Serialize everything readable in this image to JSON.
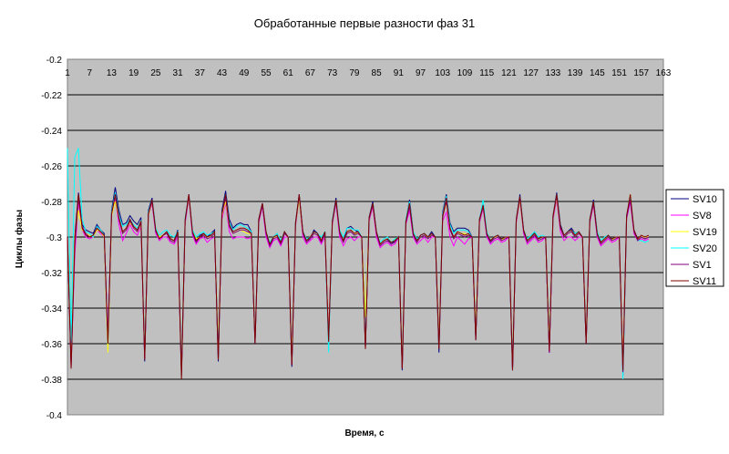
{
  "chart_data": {
    "type": "line",
    "title": "Обработанные первые разности фаз 31",
    "xlabel": "Время, с",
    "ylabel": "Циклы фазы",
    "ylim": [
      -0.4,
      -0.2
    ],
    "yticks": [
      -0.2,
      -0.22,
      -0.24,
      -0.26,
      -0.28,
      -0.3,
      -0.32,
      -0.34,
      -0.36,
      -0.38,
      -0.4
    ],
    "ytick_labels": [
      "-0.2",
      "-0.22",
      "-0.24",
      "-0.26",
      "-0.28",
      "-0.3",
      "-0.32",
      "-0.34",
      "-0.36",
      "-0.38",
      "-0.4"
    ],
    "x_range": [
      1,
      163
    ],
    "xtick_labels": [
      "1",
      "7",
      "13",
      "19",
      "25",
      "31",
      "37",
      "43",
      "49",
      "55",
      "61",
      "67",
      "73",
      "79",
      "85",
      "91",
      "97",
      "103",
      "109",
      "115",
      "121",
      "127",
      "133",
      "139",
      "145",
      "151",
      "157",
      "163"
    ],
    "grid": "horizontal",
    "legend_position": "right",
    "background": "#c0c0c0",
    "series": [
      {
        "name": "SV10",
        "color": "#000080",
        "values": [
          -0.3,
          -0.37,
          -0.3,
          -0.275,
          -0.293,
          -0.296,
          -0.297,
          -0.298,
          -0.293,
          -0.296,
          -0.298,
          -0.36,
          -0.285,
          -0.272,
          -0.285,
          -0.293,
          -0.292,
          -0.288,
          -0.291,
          -0.293,
          -0.289,
          -0.37,
          -0.285,
          -0.278,
          -0.296,
          -0.3,
          -0.299,
          -0.297,
          -0.301,
          -0.302,
          -0.296,
          -0.378,
          -0.29,
          -0.276,
          -0.297,
          -0.302,
          -0.299,
          -0.298,
          -0.3,
          -0.298,
          -0.296,
          -0.37,
          -0.285,
          -0.274,
          -0.29,
          -0.295,
          -0.293,
          -0.292,
          -0.293,
          -0.293,
          -0.297,
          -0.36,
          -0.29,
          -0.281,
          -0.297,
          -0.305,
          -0.3,
          -0.298,
          -0.303,
          -0.297,
          -0.3,
          -0.373,
          -0.292,
          -0.276,
          -0.297,
          -0.302,
          -0.301,
          -0.296,
          -0.298,
          -0.302,
          -0.297,
          -0.36,
          -0.291,
          -0.278,
          -0.297,
          -0.302,
          -0.295,
          -0.294,
          -0.296,
          -0.297,
          -0.3,
          -0.362,
          -0.289,
          -0.28,
          -0.297,
          -0.304,
          -0.302,
          -0.301,
          -0.304,
          -0.302,
          -0.3,
          -0.375,
          -0.291,
          -0.279,
          -0.297,
          -0.302,
          -0.299,
          -0.298,
          -0.3,
          -0.297,
          -0.3,
          -0.365,
          -0.286,
          -0.276,
          -0.292,
          -0.297,
          -0.295,
          -0.295,
          -0.295,
          -0.296,
          -0.3,
          -0.358,
          -0.29,
          -0.282,
          -0.298,
          -0.303,
          -0.3,
          -0.299,
          -0.302,
          -0.3,
          -0.3,
          -0.375,
          -0.29,
          -0.276,
          -0.296,
          -0.302,
          -0.3,
          -0.297,
          -0.301,
          -0.3,
          -0.3,
          -0.365,
          -0.288,
          -0.275,
          -0.293,
          -0.299,
          -0.297,
          -0.295,
          -0.298,
          -0.297,
          -0.3,
          -0.36,
          -0.29,
          -0.279,
          -0.297,
          -0.303,
          -0.301,
          -0.299,
          -0.302,
          -0.3,
          -0.3,
          -0.378,
          -0.288,
          -0.278,
          -0.296,
          -0.301,
          -0.3,
          -0.301,
          -0.3
        ]
      },
      {
        "name": "SV8",
        "color": "#ff00ff",
        "values": [
          -0.3,
          -0.372,
          -0.31,
          -0.28,
          -0.296,
          -0.3,
          -0.301,
          -0.3,
          -0.296,
          -0.298,
          -0.3,
          -0.355,
          -0.288,
          -0.279,
          -0.293,
          -0.302,
          -0.298,
          -0.293,
          -0.297,
          -0.299,
          -0.294,
          -0.368,
          -0.288,
          -0.281,
          -0.298,
          -0.302,
          -0.3,
          -0.3,
          -0.303,
          -0.304,
          -0.3,
          -0.375,
          -0.292,
          -0.278,
          -0.299,
          -0.304,
          -0.301,
          -0.3,
          -0.303,
          -0.301,
          -0.3,
          -0.365,
          -0.29,
          -0.281,
          -0.297,
          -0.301,
          -0.3,
          -0.3,
          -0.3,
          -0.301,
          -0.3,
          -0.358,
          -0.292,
          -0.283,
          -0.3,
          -0.306,
          -0.302,
          -0.301,
          -0.305,
          -0.3,
          -0.3,
          -0.37,
          -0.294,
          -0.278,
          -0.3,
          -0.304,
          -0.302,
          -0.3,
          -0.3,
          -0.304,
          -0.3,
          -0.355,
          -0.293,
          -0.281,
          -0.3,
          -0.305,
          -0.301,
          -0.3,
          -0.302,
          -0.3,
          -0.3,
          -0.36,
          -0.291,
          -0.283,
          -0.3,
          -0.306,
          -0.304,
          -0.303,
          -0.305,
          -0.304,
          -0.3,
          -0.372,
          -0.293,
          -0.285,
          -0.3,
          -0.304,
          -0.302,
          -0.3,
          -0.303,
          -0.3,
          -0.3,
          -0.36,
          -0.291,
          -0.286,
          -0.3,
          -0.305,
          -0.3,
          -0.302,
          -0.304,
          -0.301,
          -0.3,
          -0.356,
          -0.292,
          -0.284,
          -0.3,
          -0.304,
          -0.302,
          -0.301,
          -0.303,
          -0.302,
          -0.3,
          -0.372,
          -0.292,
          -0.279,
          -0.298,
          -0.304,
          -0.302,
          -0.3,
          -0.303,
          -0.302,
          -0.3,
          -0.365,
          -0.29,
          -0.279,
          -0.297,
          -0.302,
          -0.3,
          -0.3,
          -0.302,
          -0.3,
          -0.3,
          -0.358,
          -0.292,
          -0.282,
          -0.3,
          -0.305,
          -0.303,
          -0.301,
          -0.303,
          -0.302,
          -0.3,
          -0.374,
          -0.29,
          -0.28,
          -0.298,
          -0.302,
          -0.301,
          -0.302,
          -0.301
        ]
      },
      {
        "name": "SV19",
        "color": "#ffff00",
        "values": [
          -0.3,
          -0.365,
          -0.3,
          -0.285,
          -0.296,
          -0.298,
          -0.299,
          -0.3,
          -0.296,
          -0.297,
          -0.3,
          -0.365,
          -0.288,
          -0.28,
          -0.29,
          -0.298,
          -0.296,
          -0.292,
          -0.295,
          -0.297,
          -0.293,
          -0.365,
          -0.288,
          -0.28,
          -0.296,
          -0.3,
          -0.299,
          -0.298,
          -0.301,
          -0.302,
          -0.298,
          -0.372,
          -0.29,
          -0.278,
          -0.297,
          -0.301,
          -0.3,
          -0.299,
          -0.3,
          -0.3,
          -0.298,
          -0.362,
          -0.288,
          -0.28,
          -0.294,
          -0.298,
          -0.297,
          -0.296,
          -0.297,
          -0.298,
          -0.298,
          -0.358,
          -0.291,
          -0.282,
          -0.297,
          -0.303,
          -0.3,
          -0.3,
          -0.302,
          -0.298,
          -0.3,
          -0.368,
          -0.293,
          -0.279,
          -0.298,
          -0.302,
          -0.3,
          -0.298,
          -0.299,
          -0.302,
          -0.298,
          -0.356,
          -0.292,
          -0.28,
          -0.297,
          -0.302,
          -0.297,
          -0.296,
          -0.298,
          -0.298,
          -0.3,
          -0.345,
          -0.29,
          -0.282,
          -0.298,
          -0.304,
          -0.302,
          -0.301,
          -0.303,
          -0.301,
          -0.3,
          -0.37,
          -0.292,
          -0.282,
          -0.298,
          -0.302,
          -0.3,
          -0.299,
          -0.3,
          -0.299,
          -0.3,
          -0.358,
          -0.289,
          -0.281,
          -0.296,
          -0.3,
          -0.298,
          -0.298,
          -0.298,
          -0.299,
          -0.3,
          -0.352,
          -0.291,
          -0.283,
          -0.298,
          -0.302,
          -0.3,
          -0.3,
          -0.302,
          -0.3,
          -0.3,
          -0.37,
          -0.291,
          -0.279,
          -0.297,
          -0.302,
          -0.3,
          -0.298,
          -0.301,
          -0.3,
          -0.3,
          -0.36,
          -0.289,
          -0.278,
          -0.295,
          -0.3,
          -0.298,
          -0.297,
          -0.299,
          -0.298,
          -0.3,
          -0.356,
          -0.291,
          -0.281,
          -0.298,
          -0.303,
          -0.301,
          -0.3,
          -0.302,
          -0.3,
          -0.3,
          -0.372,
          -0.289,
          -0.276,
          -0.297,
          -0.301,
          -0.3,
          -0.3,
          -0.3
        ]
      },
      {
        "name": "SV20",
        "color": "#00ffff",
        "values": [
          -0.25,
          -0.36,
          -0.255,
          -0.25,
          -0.29,
          -0.297,
          -0.298,
          -0.3,
          -0.294,
          -0.296,
          -0.299,
          -0.36,
          -0.286,
          -0.275,
          -0.288,
          -0.294,
          -0.293,
          -0.29,
          -0.293,
          -0.295,
          -0.291,
          -0.366,
          -0.286,
          -0.279,
          -0.295,
          -0.299,
          -0.297,
          -0.296,
          -0.299,
          -0.3,
          -0.297,
          -0.374,
          -0.289,
          -0.277,
          -0.296,
          -0.3,
          -0.298,
          -0.297,
          -0.299,
          -0.298,
          -0.297,
          -0.366,
          -0.287,
          -0.276,
          -0.292,
          -0.296,
          -0.294,
          -0.293,
          -0.294,
          -0.295,
          -0.297,
          -0.359,
          -0.29,
          -0.282,
          -0.297,
          -0.303,
          -0.3,
          -0.298,
          -0.302,
          -0.297,
          -0.3,
          -0.37,
          -0.292,
          -0.277,
          -0.297,
          -0.301,
          -0.3,
          -0.297,
          -0.298,
          -0.3,
          -0.297,
          -0.365,
          -0.29,
          -0.279,
          -0.296,
          -0.3,
          -0.295,
          -0.295,
          -0.296,
          -0.296,
          -0.3,
          -0.358,
          -0.289,
          -0.281,
          -0.297,
          -0.303,
          -0.301,
          -0.3,
          -0.303,
          -0.301,
          -0.3,
          -0.372,
          -0.29,
          -0.28,
          -0.297,
          -0.301,
          -0.299,
          -0.298,
          -0.3,
          -0.298,
          -0.3,
          -0.362,
          -0.287,
          -0.277,
          -0.293,
          -0.298,
          -0.296,
          -0.296,
          -0.296,
          -0.297,
          -0.3,
          -0.356,
          -0.29,
          -0.279,
          -0.297,
          -0.302,
          -0.3,
          -0.299,
          -0.301,
          -0.3,
          -0.3,
          -0.372,
          -0.29,
          -0.277,
          -0.296,
          -0.301,
          -0.299,
          -0.297,
          -0.3,
          -0.299,
          -0.3,
          -0.362,
          -0.288,
          -0.276,
          -0.294,
          -0.299,
          -0.297,
          -0.296,
          -0.298,
          -0.297,
          -0.3,
          -0.358,
          -0.29,
          -0.28,
          -0.297,
          -0.302,
          -0.3,
          -0.299,
          -0.301,
          -0.3,
          -0.3,
          -0.38,
          -0.288,
          -0.277,
          -0.296,
          -0.302,
          -0.302,
          -0.303,
          -0.302
        ]
      },
      {
        "name": "SV1",
        "color": "#800080",
        "values": [
          -0.3,
          -0.373,
          -0.305,
          -0.278,
          -0.294,
          -0.298,
          -0.3,
          -0.299,
          -0.295,
          -0.297,
          -0.299,
          -0.358,
          -0.287,
          -0.277,
          -0.29,
          -0.298,
          -0.296,
          -0.291,
          -0.295,
          -0.297,
          -0.292,
          -0.368,
          -0.287,
          -0.28,
          -0.297,
          -0.301,
          -0.299,
          -0.298,
          -0.302,
          -0.303,
          -0.298,
          -0.376,
          -0.291,
          -0.277,
          -0.298,
          -0.303,
          -0.3,
          -0.299,
          -0.301,
          -0.3,
          -0.298,
          -0.368,
          -0.287,
          -0.278,
          -0.294,
          -0.298,
          -0.297,
          -0.296,
          -0.296,
          -0.297,
          -0.298,
          -0.36,
          -0.291,
          -0.282,
          -0.298,
          -0.305,
          -0.301,
          -0.3,
          -0.304,
          -0.298,
          -0.3,
          -0.372,
          -0.293,
          -0.277,
          -0.298,
          -0.303,
          -0.301,
          -0.298,
          -0.299,
          -0.303,
          -0.298,
          -0.358,
          -0.292,
          -0.28,
          -0.298,
          -0.303,
          -0.298,
          -0.297,
          -0.299,
          -0.298,
          -0.3,
          -0.362,
          -0.29,
          -0.282,
          -0.298,
          -0.305,
          -0.303,
          -0.302,
          -0.304,
          -0.303,
          -0.3,
          -0.374,
          -0.292,
          -0.283,
          -0.299,
          -0.303,
          -0.3,
          -0.299,
          -0.301,
          -0.299,
          -0.3,
          -0.362,
          -0.289,
          -0.28,
          -0.296,
          -0.301,
          -0.298,
          -0.299,
          -0.3,
          -0.299,
          -0.3,
          -0.357,
          -0.291,
          -0.283,
          -0.299,
          -0.303,
          -0.301,
          -0.3,
          -0.302,
          -0.301,
          -0.3,
          -0.374,
          -0.291,
          -0.278,
          -0.297,
          -0.303,
          -0.301,
          -0.299,
          -0.302,
          -0.301,
          -0.3,
          -0.365,
          -0.289,
          -0.277,
          -0.295,
          -0.3,
          -0.298,
          -0.297,
          -0.3,
          -0.298,
          -0.3,
          -0.359,
          -0.291,
          -0.281,
          -0.299,
          -0.304,
          -0.302,
          -0.3,
          -0.302,
          -0.301,
          -0.3,
          -0.376,
          -0.289,
          -0.279,
          -0.297,
          -0.302,
          -0.3,
          -0.301,
          -0.3
        ]
      },
      {
        "name": "SV11",
        "color": "#800000",
        "values": [
          -0.3,
          -0.374,
          -0.302,
          -0.276,
          -0.295,
          -0.299,
          -0.3,
          -0.299,
          -0.295,
          -0.297,
          -0.299,
          -0.36,
          -0.287,
          -0.276,
          -0.289,
          -0.297,
          -0.295,
          -0.29,
          -0.294,
          -0.296,
          -0.291,
          -0.369,
          -0.287,
          -0.279,
          -0.296,
          -0.301,
          -0.299,
          -0.297,
          -0.301,
          -0.302,
          -0.297,
          -0.38,
          -0.29,
          -0.276,
          -0.297,
          -0.302,
          -0.3,
          -0.298,
          -0.3,
          -0.299,
          -0.297,
          -0.369,
          -0.287,
          -0.276,
          -0.293,
          -0.297,
          -0.296,
          -0.295,
          -0.295,
          -0.296,
          -0.298,
          -0.36,
          -0.29,
          -0.281,
          -0.297,
          -0.304,
          -0.3,
          -0.299,
          -0.303,
          -0.297,
          -0.3,
          -0.372,
          -0.292,
          -0.276,
          -0.297,
          -0.302,
          -0.3,
          -0.297,
          -0.298,
          -0.302,
          -0.297,
          -0.359,
          -0.291,
          -0.279,
          -0.297,
          -0.302,
          -0.297,
          -0.296,
          -0.298,
          -0.297,
          -0.3,
          -0.363,
          -0.289,
          -0.281,
          -0.297,
          -0.304,
          -0.302,
          -0.301,
          -0.303,
          -0.302,
          -0.3,
          -0.374,
          -0.291,
          -0.281,
          -0.298,
          -0.302,
          -0.299,
          -0.298,
          -0.3,
          -0.298,
          -0.3,
          -0.363,
          -0.288,
          -0.278,
          -0.295,
          -0.3,
          -0.297,
          -0.298,
          -0.299,
          -0.298,
          -0.3,
          -0.358,
          -0.29,
          -0.282,
          -0.298,
          -0.302,
          -0.3,
          -0.299,
          -0.301,
          -0.3,
          -0.3,
          -0.375,
          -0.29,
          -0.277,
          -0.296,
          -0.302,
          -0.3,
          -0.298,
          -0.301,
          -0.3,
          -0.3,
          -0.364,
          -0.288,
          -0.276,
          -0.294,
          -0.299,
          -0.297,
          -0.296,
          -0.299,
          -0.297,
          -0.3,
          -0.36,
          -0.29,
          -0.28,
          -0.298,
          -0.303,
          -0.301,
          -0.299,
          -0.301,
          -0.3,
          -0.3,
          -0.375,
          -0.288,
          -0.276,
          -0.296,
          -0.301,
          -0.299,
          -0.3,
          -0.299
        ]
      }
    ]
  }
}
